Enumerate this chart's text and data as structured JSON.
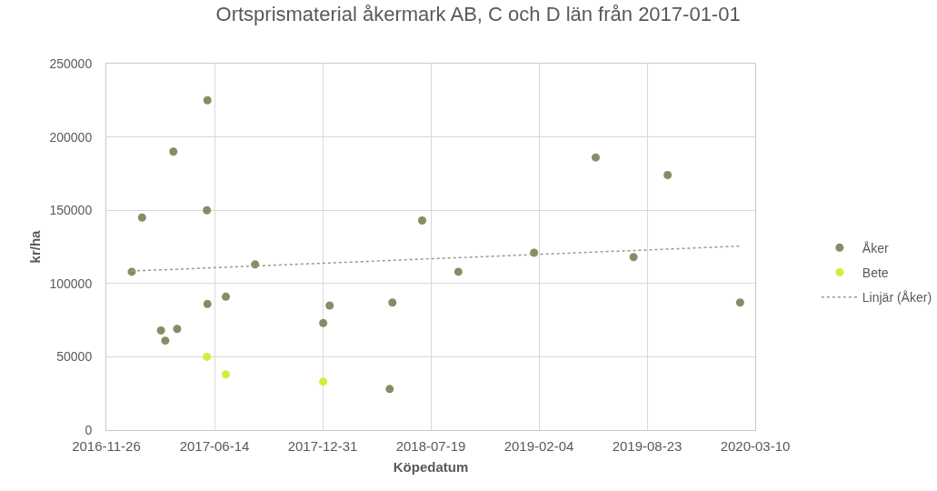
{
  "chart_data": {
    "type": "scatter",
    "title": "Ortsprismaterial åkermark AB, C och D län från 2017-01-01",
    "xlabel": "Köpedatum",
    "ylabel": "kr/ha",
    "xlim": [
      "2016-11-26",
      "2020-03-10"
    ],
    "xticks": [
      "2016-11-26",
      "2017-06-14",
      "2017-12-31",
      "2018-07-19",
      "2019-02-04",
      "2019-08-23",
      "2020-03-10"
    ],
    "ylim": [
      0,
      250000
    ],
    "yticks": [
      0,
      50000,
      100000,
      150000,
      200000,
      250000
    ],
    "grid": true,
    "legend": "right",
    "marker": "circle",
    "series": [
      {
        "name": "Åker",
        "color": "#8a8a66",
        "x": [
          "2017-01-12",
          "2017-01-31",
          "2017-03-07",
          "2017-03-15",
          "2017-03-30",
          "2017-04-06",
          "2017-05-31",
          "2017-06-01",
          "2017-06-01",
          "2017-07-05",
          "2017-08-28",
          "2018-01-01",
          "2018-01-13",
          "2018-05-04",
          "2018-05-09",
          "2018-07-03",
          "2018-09-08",
          "2019-01-26",
          "2019-05-20",
          "2019-07-29",
          "2019-09-30",
          "2020-02-11"
        ],
        "values": [
          108000,
          145000,
          68000,
          61000,
          190000,
          69000,
          150000,
          225000,
          86000,
          91000,
          113000,
          73000,
          85000,
          28000,
          87000,
          143000,
          108000,
          121000,
          186000,
          118000,
          174000,
          87000
        ]
      },
      {
        "name": "Bete",
        "color": "#d4ec3c",
        "x": [
          "2017-05-31",
          "2017-07-05",
          "2018-01-01"
        ],
        "values": [
          50000,
          38000,
          33000
        ]
      },
      {
        "name": "Linjär (Åker)",
        "type": "line",
        "marker": "none",
        "line_style": "dotted",
        "color": "#9a9a86",
        "x": [
          "2017-01-12",
          "2020-02-11"
        ],
        "values": [
          108500,
          125500
        ]
      }
    ]
  }
}
